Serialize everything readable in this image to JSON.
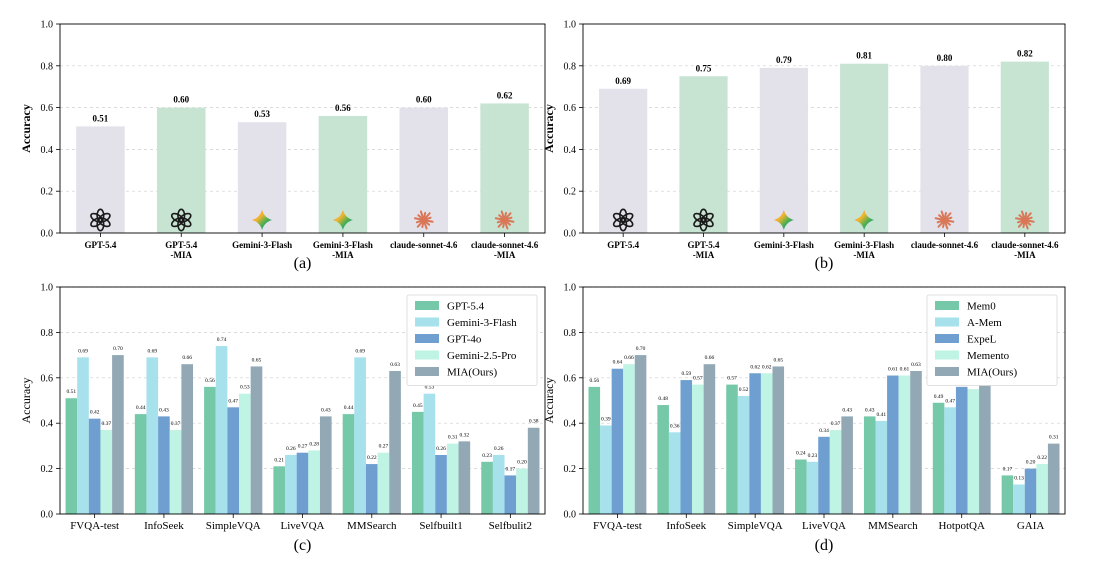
{
  "chart_data": [
    {
      "id": "a",
      "type": "bar",
      "panel_label": "(a)",
      "xlabel": "",
      "ylabel": "Accuracy",
      "ylim": [
        0,
        1.0
      ],
      "yticks": [
        "0.0",
        "0.2",
        "0.4",
        "0.6",
        "0.8",
        "1.0"
      ],
      "grid": true,
      "categories": [
        "GPT-5.4",
        "GPT-5.4\n-MIA",
        "Gemini-3-Flash",
        "Gemini-3-Flash\n-MIA",
        "claude-sonnet-4.6",
        "claude-sonnet-4.6\n-MIA"
      ],
      "values": [
        0.51,
        0.6,
        0.53,
        0.56,
        0.6,
        0.62
      ],
      "value_labels": [
        "0.51",
        "0.60",
        "0.53",
        "0.56",
        "0.60",
        "0.62"
      ],
      "bar_colors": [
        "#e3e1ea",
        "#c7e4d3",
        "#e3e1ea",
        "#c7e4d3",
        "#e3e1ea",
        "#c7e4d3"
      ],
      "bar_icons": [
        "openai-logo-icon",
        "openai-logo-icon",
        "gemini-star-icon",
        "gemini-star-icon",
        "claude-asterisk-icon",
        "claude-asterisk-icon"
      ]
    },
    {
      "id": "b",
      "type": "bar",
      "panel_label": "(b)",
      "xlabel": "",
      "ylabel": "Accuracy",
      "ylim": [
        0,
        1.0
      ],
      "yticks": [
        "0.0",
        "0.2",
        "0.4",
        "0.6",
        "0.8",
        "1.0"
      ],
      "grid": true,
      "categories": [
        "GPT-5.4",
        "GPT-5.4\n-MIA",
        "Gemini-3-Flash",
        "Gemini-3-Flash\n-MIA",
        "claude-sonnet-4.6",
        "claude-sonnet-4.6\n-MIA"
      ],
      "values": [
        0.69,
        0.75,
        0.79,
        0.81,
        0.8,
        0.82
      ],
      "value_labels": [
        "0.69",
        "0.75",
        "0.79",
        "0.81",
        "0.80",
        "0.82"
      ],
      "bar_colors": [
        "#e3e1ea",
        "#c7e4d3",
        "#e3e1ea",
        "#c7e4d3",
        "#e3e1ea",
        "#c7e4d3"
      ],
      "bar_icons": [
        "openai-logo-icon",
        "openai-logo-icon",
        "gemini-star-icon",
        "gemini-star-icon",
        "claude-asterisk-icon",
        "claude-asterisk-icon"
      ]
    },
    {
      "id": "c",
      "type": "bar",
      "panel_label": "(c)",
      "xlabel": "",
      "ylabel": "Accuracy",
      "ylim": [
        0,
        1.0
      ],
      "yticks": [
        "0.0",
        "0.2",
        "0.4",
        "0.6",
        "0.8",
        "1.0"
      ],
      "grid": true,
      "legend": "top-right",
      "categories": [
        "FVQA-test",
        "InfoSeek",
        "SimpleVQA",
        "LiveVQA",
        "MMSearch",
        "Selfbuilt1",
        "Selfbulit2"
      ],
      "series": [
        {
          "name": "GPT-5.4",
          "color": "#75c9a8",
          "values": [
            0.51,
            0.44,
            0.56,
            0.21,
            0.44,
            0.45,
            0.23
          ],
          "labels": [
            "0.51",
            "0.44",
            "0.56",
            "0.21",
            "0.44",
            "0.45",
            "0.23"
          ]
        },
        {
          "name": "Gemini-3-Flash",
          "color": "#a6e1ec",
          "values": [
            0.69,
            0.69,
            0.74,
            0.26,
            0.69,
            0.53,
            0.26
          ],
          "labels": [
            "0.69",
            "0.69",
            "0.74",
            "0.26",
            "0.69",
            "0.53",
            "0.26"
          ]
        },
        {
          "name": "GPT-4o",
          "color": "#6f9fd0",
          "values": [
            0.42,
            0.43,
            0.47,
            0.27,
            0.22,
            0.26,
            0.17
          ],
          "labels": [
            "0.42",
            "0.43",
            "0.47",
            "0.27",
            "0.22",
            "0.26",
            "0.17"
          ]
        },
        {
          "name": "Gemini-2.5-Pro",
          "color": "#bff3e3",
          "values": [
            0.37,
            0.37,
            0.53,
            0.28,
            0.27,
            0.31,
            0.2
          ],
          "labels": [
            "0.37",
            "0.37",
            "0.53",
            "0.28",
            "0.27",
            "0.31",
            "0.20"
          ]
        },
        {
          "name": "MIA(Ours)",
          "color": "#92a8b4",
          "values": [
            0.7,
            0.66,
            0.65,
            0.43,
            0.63,
            0.32,
            0.38
          ],
          "labels": [
            "0.70",
            "0.66",
            "0.65",
            "0.43",
            "0.63",
            "0.32",
            "0.38"
          ]
        }
      ]
    },
    {
      "id": "d",
      "type": "bar",
      "panel_label": "(d)",
      "xlabel": "",
      "ylabel": "Accuracy",
      "ylim": [
        0,
        1.0
      ],
      "yticks": [
        "0.0",
        "0.2",
        "0.4",
        "0.6",
        "0.8",
        "1.0"
      ],
      "grid": true,
      "legend": "top-right",
      "categories": [
        "FVQA-test",
        "InfoSeek",
        "SimpleVQA",
        "LiveVQA",
        "MMSearch",
        "HotpotQA",
        "GAIA"
      ],
      "series": [
        {
          "name": "Mem0",
          "color": "#75c9a8",
          "values": [
            0.56,
            0.48,
            0.57,
            0.24,
            0.43,
            0.49,
            0.17
          ],
          "labels": [
            "0.56",
            "0.48",
            "0.57",
            "0.24",
            "0.43",
            "0.49",
            "0.17"
          ]
        },
        {
          "name": "A-Mem",
          "color": "#a6e1ec",
          "values": [
            0.39,
            0.36,
            0.52,
            0.23,
            0.41,
            0.47,
            0.13
          ],
          "labels": [
            "0.39",
            "0.36",
            "0.52",
            "0.23",
            "0.41",
            "0.47",
            "0.13"
          ]
        },
        {
          "name": "ExpeL",
          "color": "#6f9fd0",
          "values": [
            0.64,
            0.59,
            0.62,
            0.34,
            0.61,
            0.56,
            0.2
          ],
          "labels": [
            "0.64",
            "0.59",
            "0.62",
            "0.34",
            "0.61",
            "0.56",
            "0.20"
          ]
        },
        {
          "name": "Memento",
          "color": "#bff3e3",
          "values": [
            0.66,
            0.57,
            0.62,
            0.37,
            0.61,
            0.55,
            0.22
          ],
          "labels": [
            "0.66",
            "0.57",
            "0.62",
            "0.37",
            "0.61",
            "0.55",
            "0.22"
          ]
        },
        {
          "name": "MIA(Ours)",
          "color": "#92a8b4",
          "values": [
            0.7,
            0.66,
            0.65,
            0.43,
            0.63,
            0.64,
            0.31
          ],
          "labels": [
            "0.70",
            "0.66",
            "0.65",
            "0.43",
            "0.63",
            "0.64",
            "0.31"
          ]
        }
      ]
    }
  ]
}
